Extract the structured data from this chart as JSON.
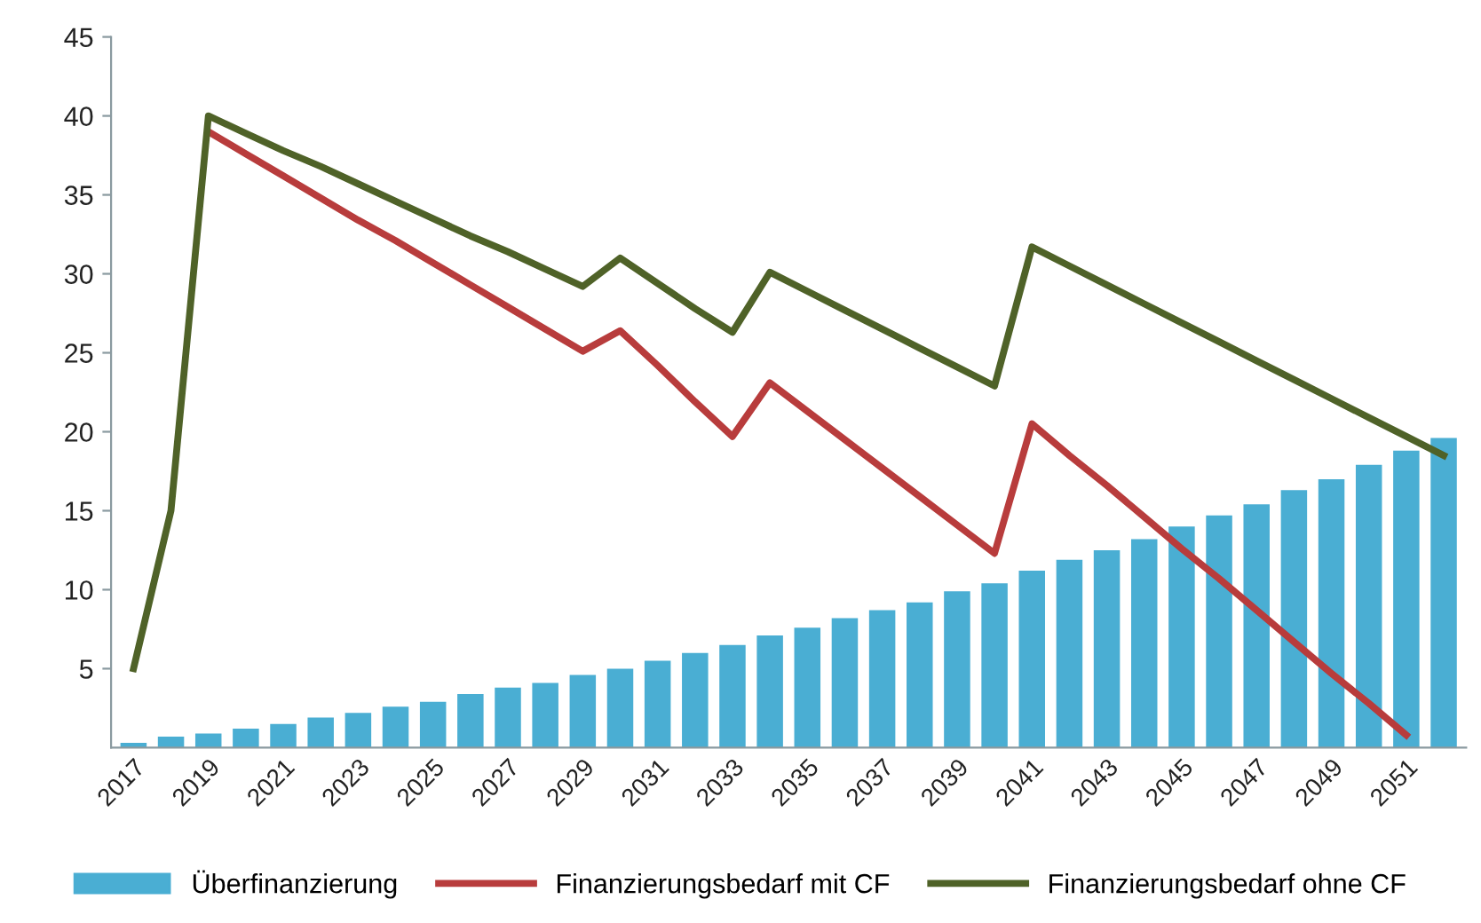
{
  "chart_data": {
    "type": "bar",
    "categories": [
      "2017",
      null,
      "2019",
      null,
      "2021",
      null,
      "2023",
      null,
      "2025",
      null,
      "2027",
      null,
      "2029",
      null,
      "2031",
      null,
      "2033",
      null,
      "2035",
      null,
      "2037",
      null,
      "2039",
      null,
      "2041",
      null,
      "2043",
      null,
      "2045",
      null,
      "2047",
      null,
      "2049",
      null,
      "2051",
      null
    ],
    "series": [
      {
        "name": "Überfinanzierung",
        "color": "#4aaed3",
        "values": [
          0.3,
          0.7,
          0.9,
          1.2,
          1.5,
          1.9,
          2.2,
          2.6,
          2.9,
          3.4,
          3.8,
          4.1,
          4.6,
          5.0,
          5.5,
          6.0,
          6.5,
          7.1,
          7.6,
          8.2,
          8.7,
          9.2,
          9.9,
          10.4,
          11.2,
          11.9,
          12.5,
          13.2,
          14.0,
          14.7,
          15.4,
          16.3,
          17.0,
          17.9,
          18.8,
          19.6
        ]
      },
      {
        "name": "Finanzierungsbedarf mit CF",
        "type": "line",
        "color": "#b83c3c",
        "values": [
          null,
          null,
          39.0,
          37.6,
          36.2,
          34.8,
          33.4,
          32.1,
          30.7,
          29.3,
          27.9,
          26.5,
          25.1,
          26.4,
          24.2,
          21.9,
          19.7,
          23.1,
          21.3,
          19.5,
          17.7,
          15.9,
          14.1,
          12.3,
          20.5,
          18.5,
          16.6,
          14.6,
          12.6,
          10.7,
          8.7,
          6.7,
          4.7,
          2.8,
          0.8,
          null
        ]
      },
      {
        "name": "Finanzierungsbedarf ohne CF",
        "type": "line",
        "color": "#4f6228",
        "values": [
          5.0,
          15.0,
          40.0,
          38.9,
          37.8,
          36.8,
          35.7,
          34.6,
          33.5,
          32.4,
          31.4,
          30.3,
          29.2,
          31.0,
          29.4,
          27.8,
          26.3,
          30.1,
          28.9,
          27.7,
          26.5,
          25.3,
          24.1,
          22.9,
          31.7,
          30.5,
          29.3,
          28.1,
          26.9,
          25.7,
          24.5,
          23.3,
          22.1,
          20.9,
          19.7,
          18.5
        ]
      }
    ],
    "ylim": [
      0,
      45
    ],
    "yticks": [
      5,
      10,
      15,
      20,
      25,
      30,
      35,
      40,
      45
    ],
    "legend": "bottom",
    "grid": false
  }
}
